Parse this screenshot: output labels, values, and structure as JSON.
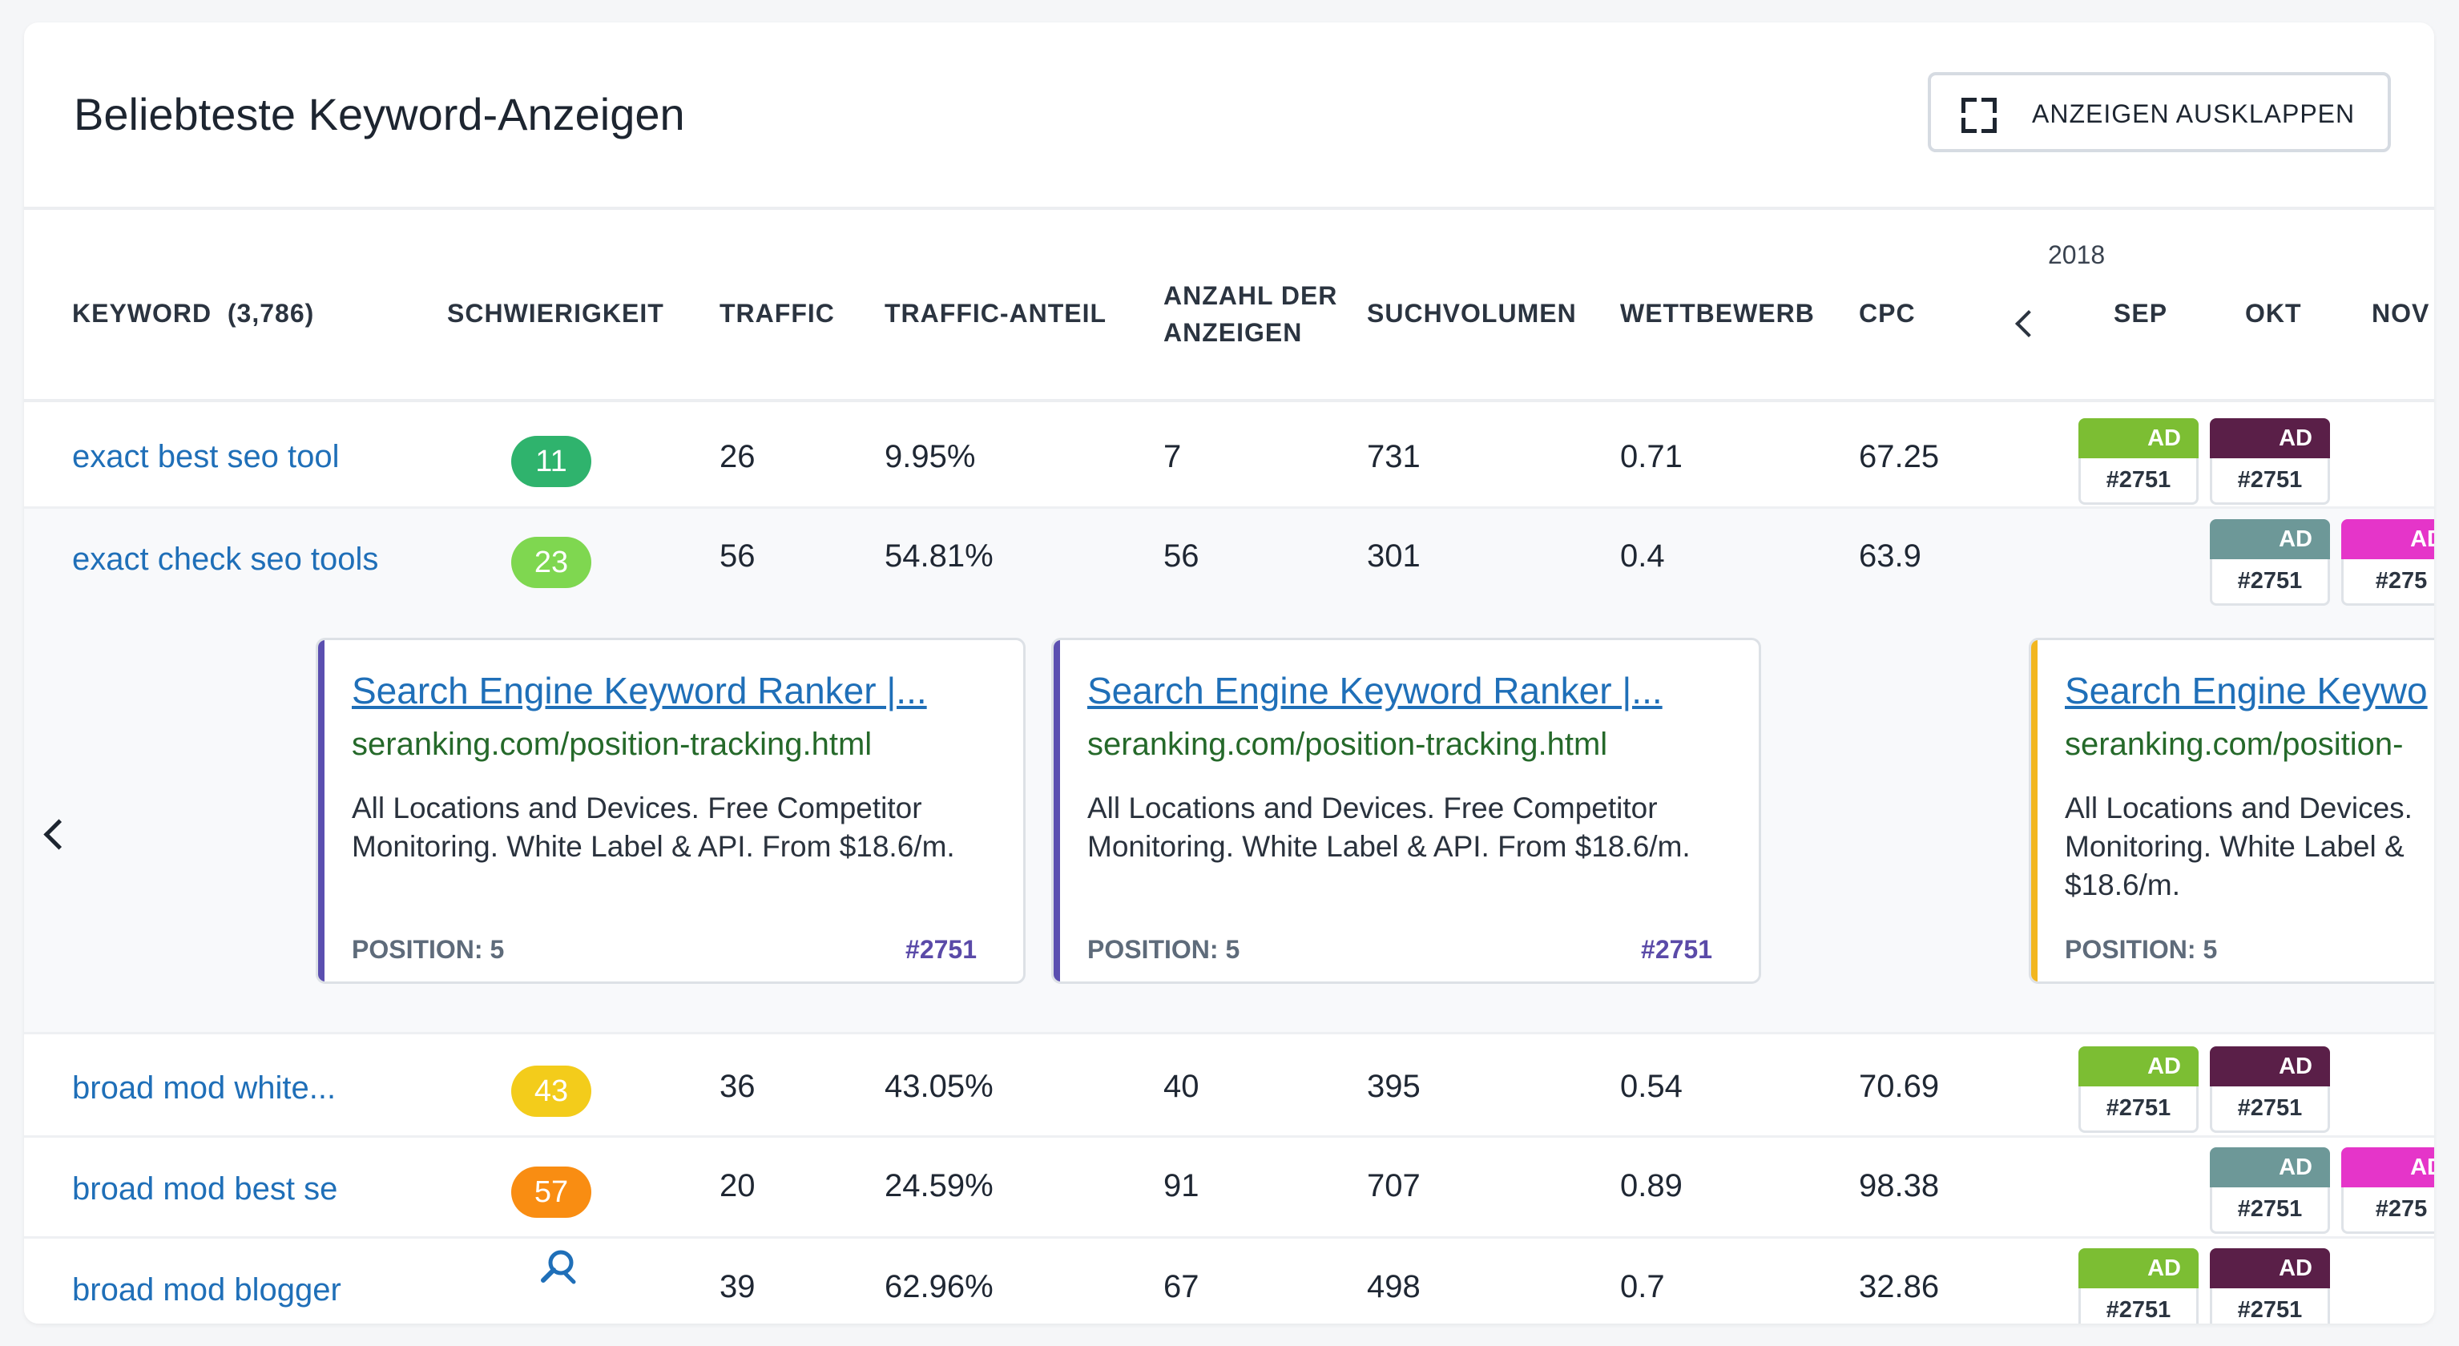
{
  "title": "Beliebteste Keyword-Anzeigen",
  "expand_button_label": "ANZEIGEN AUSKLAPPEN",
  "icons": {
    "expand": "expand-icon",
    "prev_month": "chevron-left-icon",
    "prev_ads": "chevron-left-icon",
    "no_difficulty": "search-icon"
  },
  "columns": {
    "keyword": "KEYWORD",
    "keyword_count": "(3,786)",
    "difficulty": "SCHWIERIGKEIT",
    "traffic": "TRAFFIC",
    "traffic_share": "TRAFFIC-ANTEIL",
    "ads_count_line1": "ANZAHL DER",
    "ads_count_line2": "ANZEIGEN",
    "search_volume": "SUCHVOLUMEN",
    "competition": "WETTBEWERB",
    "cpc": "CPC"
  },
  "timeline": {
    "year": "2018",
    "months": [
      "SEP",
      "OKT",
      "NOV"
    ]
  },
  "ad_badge": {
    "label": "AD",
    "id": "#2751",
    "id_clipped": "#275"
  },
  "rows": [
    {
      "keyword": "exact best seo tool",
      "difficulty": "11",
      "difficulty_color": "#2fb36d",
      "traffic": "26",
      "traffic_share": "9.95%",
      "ads": "7",
      "volume": "731",
      "competition": "0.71",
      "cpc": "67.25"
    },
    {
      "keyword": "exact check seo tools",
      "difficulty": "23",
      "difficulty_color": "#7fd750",
      "traffic": "56",
      "traffic_share": "54.81%",
      "ads": "56",
      "volume": "301",
      "competition": "0.4",
      "cpc": "63.9"
    },
    {
      "keyword": "broad mod white...",
      "difficulty": "43",
      "difficulty_color": "#f3cc1b",
      "traffic": "36",
      "traffic_share": "43.05%",
      "ads": "40",
      "volume": "395",
      "competition": "0.54",
      "cpc": "70.69"
    },
    {
      "keyword": "broad mod best se",
      "difficulty": "57",
      "difficulty_color": "#f98d12",
      "traffic": "20",
      "traffic_share": "24.59%",
      "ads": "91",
      "volume": "707",
      "competition": "0.89",
      "cpc": "98.38"
    },
    {
      "keyword": "broad mod blogger",
      "difficulty": "",
      "difficulty_color": "",
      "traffic": "39",
      "traffic_share": "62.96%",
      "ads": "67",
      "volume": "498",
      "competition": "0.7",
      "cpc": "32.86"
    }
  ],
  "ad_colors": {
    "lime": "#7cbe33",
    "plum": "#5a1f48",
    "teal": "#6d9898",
    "magenta": "#e535c9"
  },
  "ad_cards": [
    {
      "title": "Search Engine Keyword Ranker |...",
      "url": "seranking.com/position-tracking.html",
      "description": "All Locations and Devices. Free Competitor Monitoring. White Label & API. From $18.6/m.",
      "position": "POSITION: 5",
      "id": "#2751",
      "accent": "#5b4fb0"
    },
    {
      "title": "Search Engine Keyword Ranker |...",
      "url": "seranking.com/position-tracking.html",
      "description": "All Locations and Devices. Free Competitor Monitoring. White Label & API. From $18.6/m.",
      "position": "POSITION: 5",
      "id": "#2751",
      "accent": "#5b4fb0"
    },
    {
      "title": "Search Engine Keywo",
      "url": "seranking.com/position-",
      "description": "All Locations and Devices. Monitoring. White Label & $18.6/m.",
      "position": "POSITION: 5",
      "id": "",
      "accent": "#f2b61f"
    }
  ]
}
